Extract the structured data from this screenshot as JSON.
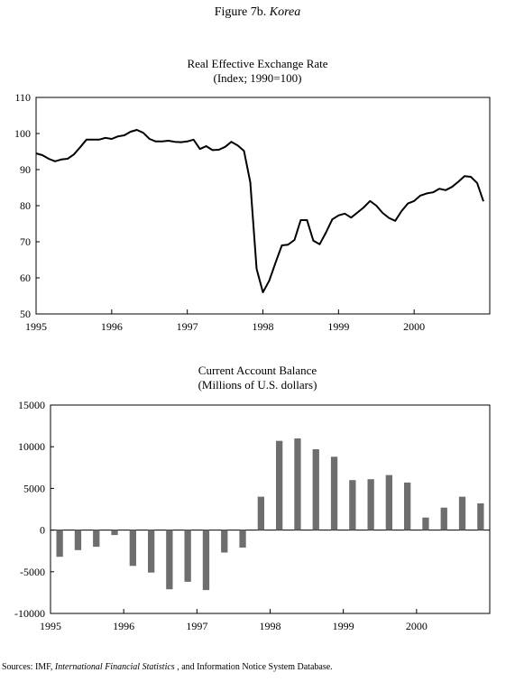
{
  "figure_title": {
    "prefix": "Figure 7b. ",
    "country": "Korea"
  },
  "sources": {
    "prefix": "Sources: IMF, ",
    "publication": "International Financial Statistics",
    "suffix": " , and Information Notice System Database."
  },
  "chart_data": [
    {
      "type": "line",
      "title": "Real Effective Exchange Rate",
      "subtitle": "(Index; 1990=100)",
      "xlabel": "",
      "ylabel": "",
      "x_tick_labels": [
        "1995",
        "1996",
        "1997",
        "1998",
        "1999",
        "2000"
      ],
      "xlim": [
        1995,
        2001
      ],
      "ylim": [
        50,
        110
      ],
      "yticks": [
        50,
        60,
        70,
        80,
        90,
        100,
        110
      ],
      "grid": false,
      "line_color": "#000000",
      "series": [
        {
          "x": [
            1995.0,
            1995.083,
            1995.167,
            1995.25,
            1995.333,
            1995.417,
            1995.5,
            1995.583,
            1995.667,
            1995.75,
            1995.833,
            1995.917,
            1996.0,
            1996.083,
            1996.167,
            1996.25,
            1996.333,
            1996.417,
            1996.5,
            1996.583,
            1996.667,
            1996.75,
            1996.833,
            1996.917,
            1997.0,
            1997.083,
            1997.167,
            1997.25,
            1997.333,
            1997.417,
            1997.5,
            1997.583,
            1997.667,
            1997.75,
            1997.833,
            1997.917,
            1998.0,
            1998.083,
            1998.167,
            1998.25,
            1998.333,
            1998.417,
            1998.5,
            1998.583,
            1998.667,
            1998.75,
            1998.833,
            1998.917,
            1999.0,
            1999.083,
            1999.167,
            1999.25,
            1999.333,
            1999.417,
            1999.5,
            1999.583,
            1999.667,
            1999.75,
            1999.833,
            1999.917,
            2000.0,
            2000.083,
            2000.167,
            2000.25,
            2000.333,
            2000.417,
            2000.5,
            2000.583,
            2000.667,
            2000.75,
            2000.833,
            2000.917
          ],
          "values": [
            94.5,
            94,
            93,
            92.3,
            92.8,
            93,
            94.2,
            96.2,
            98.3,
            98.3,
            98.3,
            98.8,
            98.5,
            99.2,
            99.5,
            100.5,
            101,
            100.2,
            98.5,
            97.8,
            97.8,
            98,
            97.7,
            97.6,
            97.8,
            98.3,
            95.7,
            96.5,
            95.4,
            95.5,
            96.3,
            97.7,
            96.7,
            95.2,
            86.5,
            62.5,
            56,
            59.2,
            64.2,
            69,
            69.2,
            70.5,
            76,
            76,
            70.3,
            69.3,
            72.5,
            76.2,
            77.3,
            77.8,
            76.7,
            78.1,
            79.5,
            81.3,
            80,
            78,
            76.6,
            75.8,
            78.5,
            80.6,
            81.3,
            82.8,
            83.4,
            83.7,
            84.7,
            84.3,
            85.2,
            86.6,
            88.2,
            88,
            86.3,
            81.2
          ]
        }
      ]
    },
    {
      "type": "bar",
      "title": "Current Account Balance",
      "subtitle": "(Millions of U.S. dollars)",
      "xlabel": "",
      "ylabel": "",
      "x_tick_labels": [
        "1995",
        "1996",
        "1997",
        "1998",
        "1999",
        "2000"
      ],
      "xlim": [
        1995,
        2001
      ],
      "ylim": [
        -10000,
        15000
      ],
      "yticks": [
        -10000,
        -5000,
        0,
        5000,
        10000,
        15000
      ],
      "grid": false,
      "bar_color": "#6e6e6e",
      "categories": [
        "1995 Q1",
        "1995 Q2",
        "1995 Q3",
        "1995 Q4",
        "1996 Q1",
        "1996 Q2",
        "1996 Q3",
        "1996 Q4",
        "1997 Q1",
        "1997 Q2",
        "1997 Q3",
        "1997 Q4",
        "1998 Q1",
        "1998 Q2",
        "1998 Q3",
        "1998 Q4",
        "1999 Q1",
        "1999 Q2",
        "1999 Q3",
        "1999 Q4",
        "2000 Q1",
        "2000 Q2",
        "2000 Q3",
        "2000 Q4"
      ],
      "values": [
        -3200,
        -2400,
        -2000,
        -600,
        -4300,
        -5100,
        -7100,
        -6200,
        -7200,
        -2700,
        -2100,
        4000,
        10700,
        11000,
        9700,
        8800,
        6000,
        6100,
        6600,
        5700,
        1500,
        2700,
        4000,
        3200
      ]
    }
  ]
}
